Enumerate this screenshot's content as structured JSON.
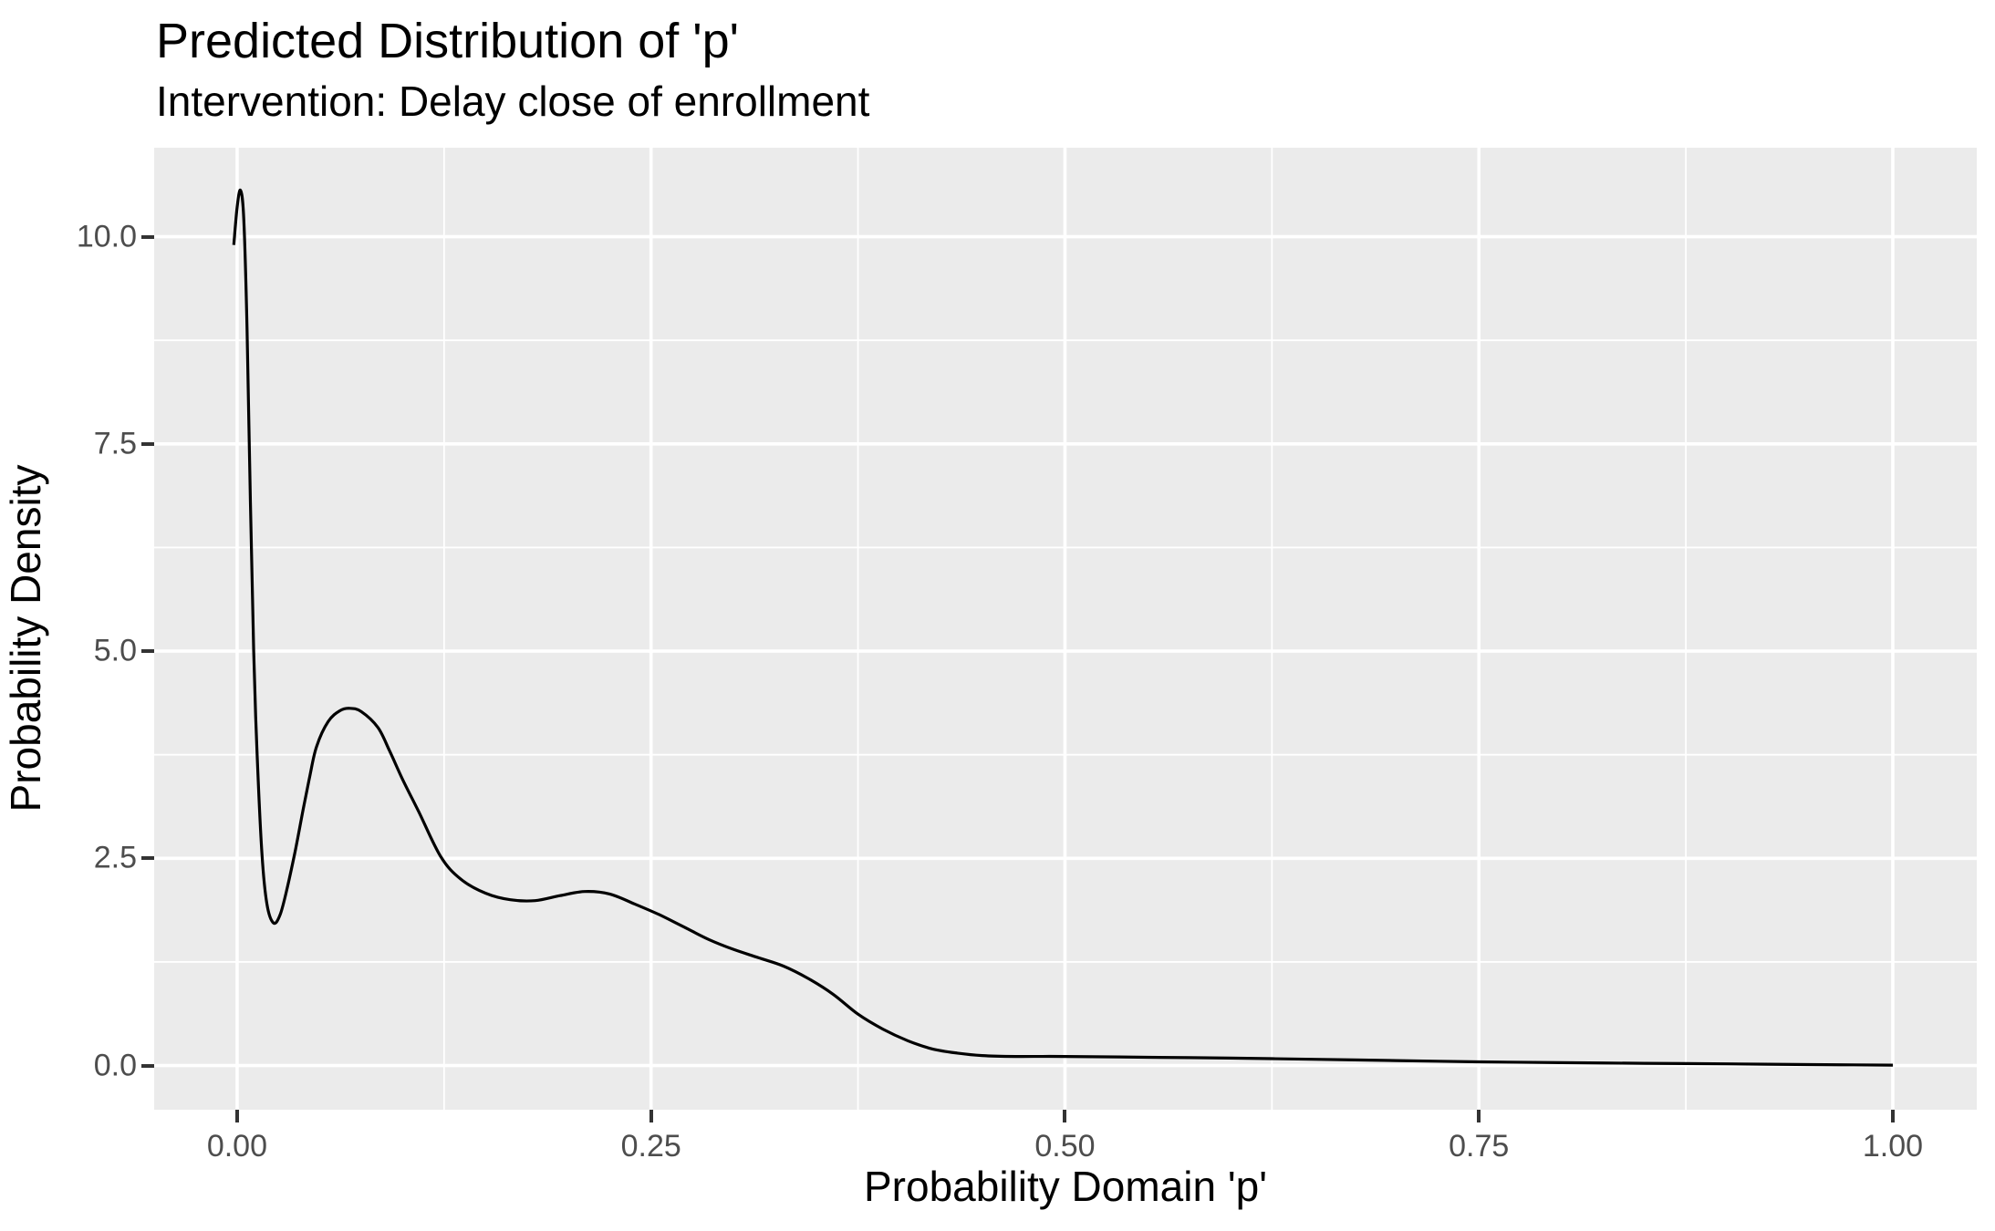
{
  "chart": {
    "title": "Predicted Distribution of 'p'",
    "subtitle": "Intervention: Delay close of enrollment",
    "x_axis_title": "Probability Domain 'p'",
    "y_axis_title": "Probability Density"
  },
  "chart_data": {
    "type": "line",
    "title": "Predicted Distribution of 'p'",
    "subtitle": "Intervention: Delay close of enrollment",
    "xlabel": "Probability Domain 'p'",
    "ylabel": "Probability Density",
    "xlim": [
      -0.0501,
      1.0507
    ],
    "ylim": [
      -0.533,
      11.073
    ],
    "grid": true,
    "legend_position": "none",
    "x_ticks": {
      "values": [
        0,
        0.25,
        0.5,
        0.75,
        1.0
      ],
      "labels": [
        "0.00",
        "0.25",
        "0.50",
        "0.75",
        "1.00"
      ],
      "minor": [
        0.125,
        0.375,
        0.625,
        0.875
      ]
    },
    "y_ticks": {
      "values": [
        0,
        2.5,
        5.0,
        7.5,
        10.0
      ],
      "labels": [
        "0.0",
        "2.5",
        "5.0",
        "7.5",
        "10.0"
      ],
      "minor": [
        1.25,
        3.75,
        6.25,
        8.75
      ]
    },
    "series": [
      {
        "name": "density-curve",
        "color": "#000000",
        "line_width": 3.2,
        "points": [
          [
            -0.002,
            9.9
          ],
          [
            0.0,
            10.35
          ],
          [
            0.002,
            10.56
          ],
          [
            0.004,
            10.22
          ],
          [
            0.006,
            8.9
          ],
          [
            0.008,
            6.8
          ],
          [
            0.01,
            5.0
          ],
          [
            0.012,
            3.8
          ],
          [
            0.015,
            2.55
          ],
          [
            0.018,
            1.95
          ],
          [
            0.022,
            1.72
          ],
          [
            0.026,
            1.82
          ],
          [
            0.03,
            2.12
          ],
          [
            0.035,
            2.58
          ],
          [
            0.04,
            3.1
          ],
          [
            0.044,
            3.5
          ],
          [
            0.048,
            3.85
          ],
          [
            0.055,
            4.15
          ],
          [
            0.062,
            4.28
          ],
          [
            0.068,
            4.31
          ],
          [
            0.075,
            4.27
          ],
          [
            0.085,
            4.08
          ],
          [
            0.092,
            3.8
          ],
          [
            0.1,
            3.45
          ],
          [
            0.11,
            3.05
          ],
          [
            0.123,
            2.52
          ],
          [
            0.135,
            2.25
          ],
          [
            0.15,
            2.08
          ],
          [
            0.165,
            2.0
          ],
          [
            0.18,
            1.99
          ],
          [
            0.195,
            2.05
          ],
          [
            0.21,
            2.1
          ],
          [
            0.225,
            2.07
          ],
          [
            0.24,
            1.95
          ],
          [
            0.255,
            1.82
          ],
          [
            0.27,
            1.67
          ],
          [
            0.285,
            1.52
          ],
          [
            0.3,
            1.4
          ],
          [
            0.315,
            1.3
          ],
          [
            0.33,
            1.2
          ],
          [
            0.345,
            1.05
          ],
          [
            0.36,
            0.86
          ],
          [
            0.375,
            0.62
          ],
          [
            0.39,
            0.44
          ],
          [
            0.405,
            0.3
          ],
          [
            0.42,
            0.2
          ],
          [
            0.435,
            0.15
          ],
          [
            0.45,
            0.12
          ],
          [
            0.47,
            0.11
          ],
          [
            0.5,
            0.11
          ],
          [
            0.55,
            0.1
          ],
          [
            0.6,
            0.09
          ],
          [
            0.65,
            0.075
          ],
          [
            0.7,
            0.06
          ],
          [
            0.75,
            0.045
          ],
          [
            0.8,
            0.035
          ],
          [
            0.85,
            0.027
          ],
          [
            0.9,
            0.02
          ],
          [
            0.95,
            0.012
          ],
          [
            1.0,
            0.005
          ]
        ]
      }
    ],
    "style": {
      "panel_bg": "#EBEBEB",
      "grid_color": "#FFFFFF",
      "major_grid_width": 3.6,
      "minor_grid_width": 1.8,
      "tick_mark_color": "#333333",
      "tick_label_color": "#4D4D4D",
      "text_color": "#000000"
    }
  }
}
